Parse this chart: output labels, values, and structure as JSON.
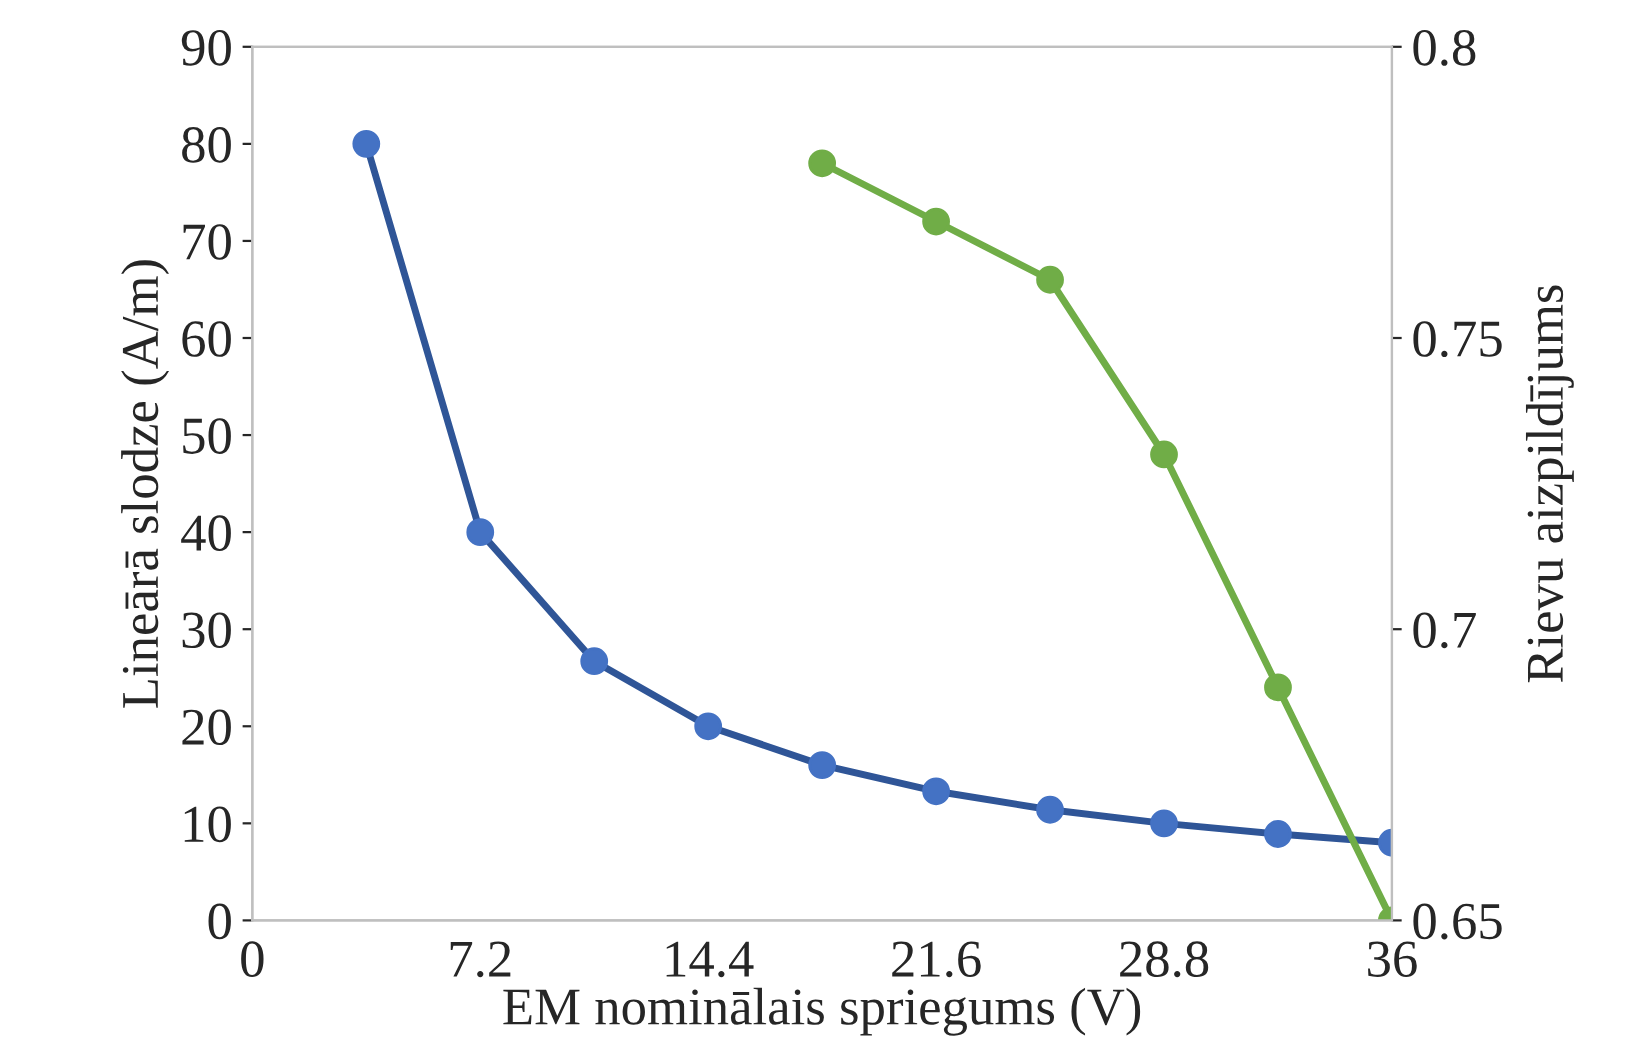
{
  "chart_data": {
    "type": "line",
    "xlabel": "EM nominālais spriegums (V)",
    "ylabel": "Lineārā slodze (A/m)",
    "y2label": "Rievu aizpildījums",
    "xlim": [
      0,
      36
    ],
    "xticks": [
      0,
      7.2,
      14.4,
      21.6,
      28.8,
      36
    ],
    "ylim": [
      0,
      90
    ],
    "yticks": [
      0,
      10,
      20,
      30,
      40,
      50,
      60,
      70,
      80,
      90
    ],
    "y2lim": [
      0.65,
      0.8
    ],
    "y2ticks": [
      0.65,
      0.7,
      0.75,
      0.8
    ],
    "marker": "circle",
    "grid": false,
    "legend": false,
    "series": [
      {
        "color": "#2f5597",
        "x": [
          3.6,
          7.2,
          10.8,
          14.4,
          18,
          21.6,
          25.2,
          28.8,
          32.4,
          36
        ],
        "values": [
          80,
          40,
          26.7,
          20,
          16,
          13.3,
          11.4,
          10,
          8.9,
          8
        ]
      },
      {
        "color": "#70ad47",
        "axis": "y2",
        "x": [
          18,
          21.6,
          25.2,
          28.8,
          32.4,
          36
        ],
        "values": [
          0.78,
          0.77,
          0.76,
          0.73,
          0.69,
          0.65
        ]
      }
    ]
  }
}
